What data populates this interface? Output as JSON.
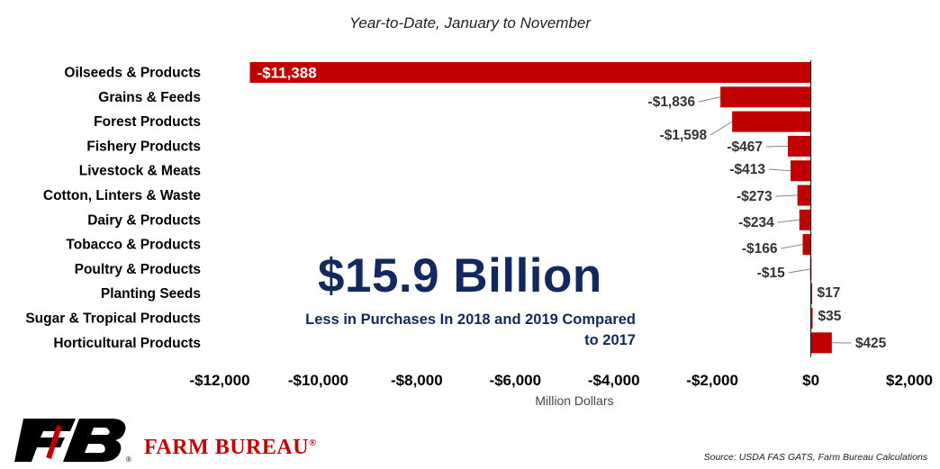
{
  "chart_data": {
    "type": "bar",
    "orientation": "horizontal",
    "subtitle": "Year-to-Date, January to November",
    "xlabel": "Million Dollars",
    "xlim": [
      -12000,
      2000
    ],
    "x_ticks": [
      "-$12,000",
      "-$10,000",
      "-$8,000",
      "-$6,000",
      "-$4,000",
      "-$2,000",
      "$0",
      "$2,000"
    ],
    "x_tick_values": [
      -12000,
      -10000,
      -8000,
      -6000,
      -4000,
      -2000,
      0,
      2000
    ],
    "grid": false,
    "bar_color": "#c00000",
    "categories": [
      "Oilseeds & Products",
      "Grains & Feeds",
      "Forest Products",
      "Fishery Products",
      "Livestock & Meats",
      "Cotton, Linters & Waste",
      "Dairy & Products",
      "Tobacco & Products",
      "Poultry & Products",
      "Planting Seeds",
      "Sugar & Tropical Products",
      "Horticultural Products"
    ],
    "values": [
      -11388,
      -1836,
      -1598,
      -467,
      -413,
      -273,
      -234,
      -166,
      -15,
      17,
      35,
      425
    ],
    "value_labels": [
      "-$11,388",
      "-$1,836",
      "-$1,598",
      "-$467",
      "-$413",
      "-$273",
      "-$234",
      "-$166",
      "-$15",
      "$17",
      "$35",
      "$425"
    ]
  },
  "annotation": {
    "headline": "$15.9 Billion",
    "subheadline_line1": "Less in Purchases In 2018 and 2019 Compared",
    "subheadline_line2": "to 2017",
    "color": "#13285e"
  },
  "footer": {
    "brand": "FARM BUREAU",
    "brand_mark": "®",
    "logo_mark": "®",
    "source": "Source: USDA FAS GATS, Farm Bureau Calculations"
  }
}
